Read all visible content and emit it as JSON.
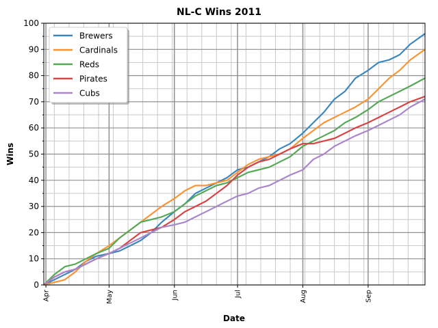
{
  "chart_data": {
    "type": "line",
    "title": "NL-C Wins 2011",
    "xlabel": "Date",
    "ylabel": "Wins",
    "xlim": [
      "2011-03-31",
      "2011-09-28"
    ],
    "ylim": [
      0,
      100
    ],
    "yticks": [
      0,
      10,
      20,
      30,
      40,
      50,
      60,
      70,
      80,
      90,
      100
    ],
    "xticks": [
      {
        "date": "2011-04-01",
        "label": "Apr"
      },
      {
        "date": "2011-05-01",
        "label": "May"
      },
      {
        "date": "2011-06-01",
        "label": "Jun"
      },
      {
        "date": "2011-07-01",
        "label": "Jul"
      },
      {
        "date": "2011-08-01",
        "label": "Aug"
      },
      {
        "date": "2011-09-01",
        "label": "Sep"
      }
    ],
    "grid": true,
    "legend": "upper-left",
    "series": [
      {
        "name": "Brewers",
        "color": "#3a87bd",
        "points": [
          [
            "2011-03-31",
            0
          ],
          [
            "2011-04-05",
            2
          ],
          [
            "2011-04-10",
            4
          ],
          [
            "2011-04-15",
            6
          ],
          [
            "2011-04-20",
            9
          ],
          [
            "2011-04-25",
            11
          ],
          [
            "2011-05-01",
            12
          ],
          [
            "2011-05-06",
            13
          ],
          [
            "2011-05-11",
            15
          ],
          [
            "2011-05-16",
            17
          ],
          [
            "2011-05-21",
            20
          ],
          [
            "2011-05-26",
            24
          ],
          [
            "2011-06-01",
            28
          ],
          [
            "2011-06-06",
            31
          ],
          [
            "2011-06-11",
            35
          ],
          [
            "2011-06-16",
            37
          ],
          [
            "2011-06-21",
            39
          ],
          [
            "2011-06-26",
            41
          ],
          [
            "2011-07-01",
            44
          ],
          [
            "2011-07-06",
            45
          ],
          [
            "2011-07-11",
            47
          ],
          [
            "2011-07-16",
            49
          ],
          [
            "2011-07-21",
            52
          ],
          [
            "2011-07-26",
            54
          ],
          [
            "2011-08-01",
            58
          ],
          [
            "2011-08-06",
            62
          ],
          [
            "2011-08-11",
            66
          ],
          [
            "2011-08-16",
            71
          ],
          [
            "2011-08-21",
            74
          ],
          [
            "2011-08-26",
            79
          ],
          [
            "2011-09-01",
            82
          ],
          [
            "2011-09-06",
            85
          ],
          [
            "2011-09-11",
            86
          ],
          [
            "2011-09-16",
            88
          ],
          [
            "2011-09-21",
            92
          ],
          [
            "2011-09-28",
            96
          ]
        ]
      },
      {
        "name": "Cardinals",
        "color": "#fa9334",
        "points": [
          [
            "2011-03-31",
            0
          ],
          [
            "2011-04-05",
            1
          ],
          [
            "2011-04-10",
            2
          ],
          [
            "2011-04-15",
            5
          ],
          [
            "2011-04-20",
            9
          ],
          [
            "2011-04-25",
            12
          ],
          [
            "2011-05-01",
            15
          ],
          [
            "2011-05-06",
            18
          ],
          [
            "2011-05-11",
            21
          ],
          [
            "2011-05-16",
            24
          ],
          [
            "2011-05-21",
            27
          ],
          [
            "2011-05-26",
            30
          ],
          [
            "2011-06-01",
            33
          ],
          [
            "2011-06-06",
            36
          ],
          [
            "2011-06-11",
            38
          ],
          [
            "2011-06-16",
            38
          ],
          [
            "2011-06-21",
            39
          ],
          [
            "2011-06-26",
            40
          ],
          [
            "2011-07-01",
            43
          ],
          [
            "2011-07-06",
            46
          ],
          [
            "2011-07-11",
            48
          ],
          [
            "2011-07-16",
            49
          ],
          [
            "2011-07-21",
            50
          ],
          [
            "2011-07-26",
            52
          ],
          [
            "2011-08-01",
            56
          ],
          [
            "2011-08-06",
            59
          ],
          [
            "2011-08-11",
            62
          ],
          [
            "2011-08-16",
            64
          ],
          [
            "2011-08-21",
            66
          ],
          [
            "2011-08-26",
            68
          ],
          [
            "2011-09-01",
            71
          ],
          [
            "2011-09-06",
            75
          ],
          [
            "2011-09-11",
            79
          ],
          [
            "2011-09-16",
            82
          ],
          [
            "2011-09-21",
            86
          ],
          [
            "2011-09-28",
            90
          ]
        ]
      },
      {
        "name": "Reds",
        "color": "#55a955",
        "points": [
          [
            "2011-03-31",
            0
          ],
          [
            "2011-04-05",
            4
          ],
          [
            "2011-04-10",
            7
          ],
          [
            "2011-04-15",
            8
          ],
          [
            "2011-04-20",
            10
          ],
          [
            "2011-04-25",
            12
          ],
          [
            "2011-05-01",
            14
          ],
          [
            "2011-05-06",
            18
          ],
          [
            "2011-05-11",
            21
          ],
          [
            "2011-05-16",
            24
          ],
          [
            "2011-05-21",
            25
          ],
          [
            "2011-05-26",
            26
          ],
          [
            "2011-06-01",
            28
          ],
          [
            "2011-06-06",
            31
          ],
          [
            "2011-06-11",
            34
          ],
          [
            "2011-06-16",
            36
          ],
          [
            "2011-06-21",
            38
          ],
          [
            "2011-06-26",
            39
          ],
          [
            "2011-07-01",
            41
          ],
          [
            "2011-07-06",
            43
          ],
          [
            "2011-07-11",
            44
          ],
          [
            "2011-07-16",
            45
          ],
          [
            "2011-07-21",
            47
          ],
          [
            "2011-07-26",
            49
          ],
          [
            "2011-08-01",
            53
          ],
          [
            "2011-08-06",
            55
          ],
          [
            "2011-08-11",
            57
          ],
          [
            "2011-08-16",
            59
          ],
          [
            "2011-08-21",
            62
          ],
          [
            "2011-08-26",
            64
          ],
          [
            "2011-09-01",
            67
          ],
          [
            "2011-09-06",
            70
          ],
          [
            "2011-09-11",
            72
          ],
          [
            "2011-09-16",
            74
          ],
          [
            "2011-09-21",
            76
          ],
          [
            "2011-09-28",
            79
          ]
        ]
      },
      {
        "name": "Pirates",
        "color": "#d64343",
        "points": [
          [
            "2011-03-31",
            0
          ],
          [
            "2011-04-05",
            3
          ],
          [
            "2011-04-10",
            5
          ],
          [
            "2011-04-15",
            6
          ],
          [
            "2011-04-20",
            8
          ],
          [
            "2011-04-25",
            10
          ],
          [
            "2011-05-01",
            12
          ],
          [
            "2011-05-06",
            14
          ],
          [
            "2011-05-11",
            17
          ],
          [
            "2011-05-16",
            20
          ],
          [
            "2011-05-21",
            21
          ],
          [
            "2011-05-26",
            22
          ],
          [
            "2011-06-01",
            25
          ],
          [
            "2011-06-06",
            28
          ],
          [
            "2011-06-11",
            30
          ],
          [
            "2011-06-16",
            32
          ],
          [
            "2011-06-21",
            35
          ],
          [
            "2011-06-26",
            38
          ],
          [
            "2011-07-01",
            42
          ],
          [
            "2011-07-06",
            45
          ],
          [
            "2011-07-11",
            47
          ],
          [
            "2011-07-16",
            48
          ],
          [
            "2011-07-21",
            50
          ],
          [
            "2011-07-26",
            52
          ],
          [
            "2011-08-01",
            54
          ],
          [
            "2011-08-06",
            54
          ],
          [
            "2011-08-11",
            55
          ],
          [
            "2011-08-16",
            56
          ],
          [
            "2011-08-21",
            58
          ],
          [
            "2011-08-26",
            60
          ],
          [
            "2011-09-01",
            62
          ],
          [
            "2011-09-06",
            64
          ],
          [
            "2011-09-11",
            66
          ],
          [
            "2011-09-16",
            68
          ],
          [
            "2011-09-21",
            70
          ],
          [
            "2011-09-28",
            72
          ]
        ]
      },
      {
        "name": "Cubs",
        "color": "#a986c9",
        "points": [
          [
            "2011-03-31",
            0
          ],
          [
            "2011-04-05",
            3
          ],
          [
            "2011-04-10",
            5
          ],
          [
            "2011-04-15",
            6
          ],
          [
            "2011-04-20",
            8
          ],
          [
            "2011-04-25",
            10
          ],
          [
            "2011-05-01",
            12
          ],
          [
            "2011-05-06",
            14
          ],
          [
            "2011-05-11",
            16
          ],
          [
            "2011-05-16",
            18
          ],
          [
            "2011-05-21",
            20
          ],
          [
            "2011-05-26",
            22
          ],
          [
            "2011-06-01",
            23
          ],
          [
            "2011-06-06",
            24
          ],
          [
            "2011-06-11",
            26
          ],
          [
            "2011-06-16",
            28
          ],
          [
            "2011-06-21",
            30
          ],
          [
            "2011-06-26",
            32
          ],
          [
            "2011-07-01",
            34
          ],
          [
            "2011-07-06",
            35
          ],
          [
            "2011-07-11",
            37
          ],
          [
            "2011-07-16",
            38
          ],
          [
            "2011-07-21",
            40
          ],
          [
            "2011-07-26",
            42
          ],
          [
            "2011-08-01",
            44
          ],
          [
            "2011-08-06",
            48
          ],
          [
            "2011-08-11",
            50
          ],
          [
            "2011-08-16",
            53
          ],
          [
            "2011-08-21",
            55
          ],
          [
            "2011-08-26",
            57
          ],
          [
            "2011-09-01",
            59
          ],
          [
            "2011-09-06",
            61
          ],
          [
            "2011-09-11",
            63
          ],
          [
            "2011-09-16",
            65
          ],
          [
            "2011-09-21",
            68
          ],
          [
            "2011-09-28",
            71
          ]
        ]
      }
    ]
  }
}
